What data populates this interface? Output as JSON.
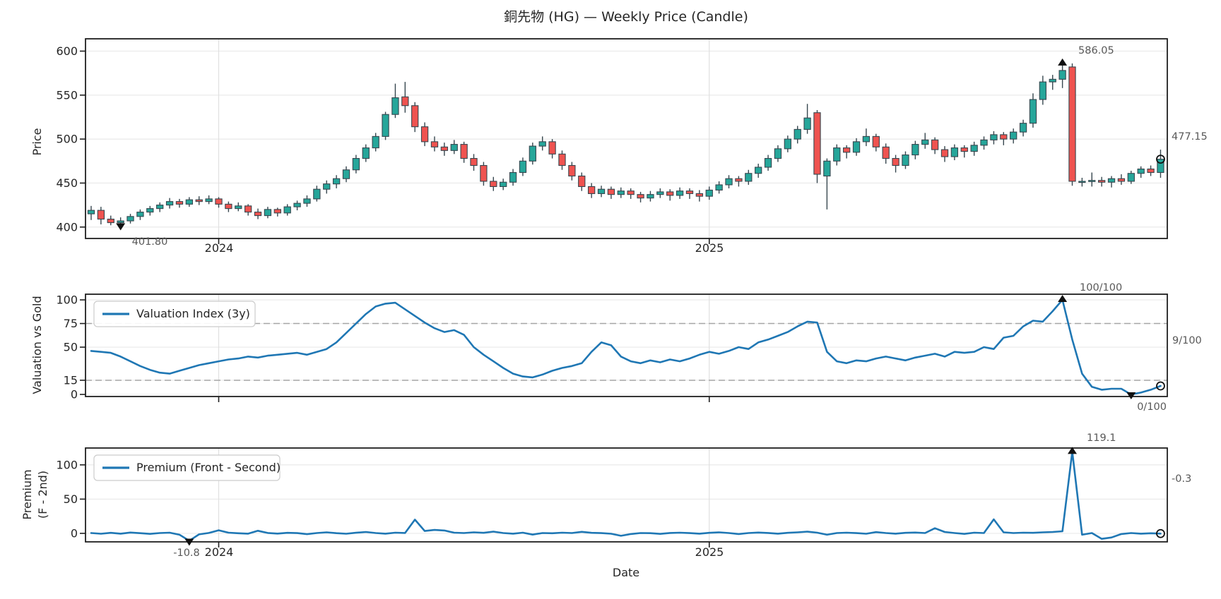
{
  "figure": {
    "title": "銅先物 (HG) — Weekly Price (Candle)",
    "xlabel": "Date",
    "xticks": [
      {
        "label": "2024",
        "index": 13
      },
      {
        "label": "2025",
        "index": 63
      }
    ],
    "colors": {
      "up": "#26a69a",
      "down": "#ef5350",
      "candle_edge": "#37474f",
      "line": "#1f77b4",
      "grid_h": "#e9e9e9",
      "grid_v": "#e0e0e0",
      "threshold": "#a6a6a6",
      "spine": "#1f1f1f",
      "marker": "#111111",
      "annotation": "#595959"
    }
  },
  "chart_data": [
    {
      "type": "candlestick",
      "ylabel": "Price",
      "yticks": [
        400,
        450,
        500,
        550,
        600
      ],
      "ylim": [
        387,
        614
      ],
      "annotations": {
        "high": {
          "index": 99,
          "value": 586.05,
          "label": "586.05"
        },
        "low": {
          "index": 3,
          "value": 401.8,
          "label": "401.80"
        },
        "last": {
          "index": 109,
          "value": 477.15,
          "label": "477.15"
        }
      },
      "ohlc": [
        [
          415,
          424,
          408,
          419
        ],
        [
          419,
          423,
          403,
          409
        ],
        [
          409,
          413,
          402,
          405
        ],
        [
          405,
          411,
          401.8,
          407
        ],
        [
          407,
          415,
          404,
          412
        ],
        [
          412,
          420,
          408,
          417
        ],
        [
          417,
          424,
          413,
          421
        ],
        [
          421,
          428,
          417,
          425
        ],
        [
          425,
          433,
          421,
          429
        ],
        [
          429,
          432,
          422,
          426
        ],
        [
          426,
          434,
          423,
          431
        ],
        [
          431,
          435,
          425,
          429
        ],
        [
          429,
          436,
          426,
          432
        ],
        [
          432,
          434,
          422,
          426
        ],
        [
          426,
          429,
          417,
          421
        ],
        [
          421,
          428,
          418,
          424
        ],
        [
          424,
          426,
          413,
          417
        ],
        [
          417,
          421,
          409,
          413
        ],
        [
          413,
          423,
          410,
          420
        ],
        [
          420,
          422,
          412,
          416
        ],
        [
          416,
          426,
          413,
          423
        ],
        [
          423,
          430,
          419,
          427
        ],
        [
          427,
          436,
          423,
          432
        ],
        [
          432,
          447,
          429,
          443
        ],
        [
          443,
          453,
          438,
          449
        ],
        [
          449,
          459,
          444,
          455
        ],
        [
          455,
          469,
          451,
          465
        ],
        [
          465,
          482,
          461,
          478
        ],
        [
          478,
          494,
          474,
          490
        ],
        [
          490,
          507,
          486,
          503
        ],
        [
          503,
          531,
          499,
          528
        ],
        [
          528,
          563,
          524,
          547
        ],
        [
          548,
          565,
          530,
          538
        ],
        [
          538,
          542,
          508,
          514
        ],
        [
          514,
          519,
          492,
          497
        ],
        [
          497,
          503,
          486,
          491
        ],
        [
          491,
          496,
          481,
          487
        ],
        [
          487,
          499,
          483,
          494
        ],
        [
          494,
          497,
          473,
          478
        ],
        [
          478,
          483,
          464,
          470
        ],
        [
          470,
          474,
          447,
          452
        ],
        [
          452,
          457,
          441,
          446
        ],
        [
          446,
          455,
          442,
          451
        ],
        [
          451,
          466,
          447,
          462
        ],
        [
          462,
          479,
          458,
          475
        ],
        [
          475,
          496,
          471,
          492
        ],
        [
          492,
          503,
          487,
          497
        ],
        [
          497,
          500,
          478,
          483
        ],
        [
          483,
          487,
          465,
          470
        ],
        [
          470,
          474,
          453,
          458
        ],
        [
          458,
          462,
          441,
          446
        ],
        [
          446,
          450,
          433,
          438
        ],
        [
          438,
          447,
          434,
          443
        ],
        [
          443,
          446,
          432,
          437
        ],
        [
          437,
          445,
          433,
          441
        ],
        [
          441,
          444,
          432,
          437
        ],
        [
          437,
          440,
          428,
          433
        ],
        [
          433,
          441,
          429,
          437
        ],
        [
          437,
          444,
          433,
          440
        ],
        [
          440,
          443,
          430,
          436
        ],
        [
          436,
          445,
          432,
          441
        ],
        [
          441,
          444,
          432,
          438
        ],
        [
          438,
          442,
          429,
          435
        ],
        [
          435,
          446,
          431,
          442
        ],
        [
          442,
          452,
          438,
          448
        ],
        [
          448,
          459,
          444,
          455
        ],
        [
          455,
          458,
          446,
          452
        ],
        [
          452,
          465,
          448,
          461
        ],
        [
          461,
          472,
          456,
          468
        ],
        [
          468,
          482,
          464,
          478
        ],
        [
          478,
          493,
          474,
          489
        ],
        [
          489,
          504,
          485,
          500
        ],
        [
          500,
          515,
          495,
          511
        ],
        [
          511,
          540,
          506,
          524
        ],
        [
          530,
          533,
          450,
          460
        ],
        [
          458,
          478,
          420,
          475
        ],
        [
          475,
          494,
          470,
          490
        ],
        [
          490,
          493,
          478,
          485
        ],
        [
          485,
          501,
          481,
          497
        ],
        [
          497,
          512,
          492,
          503
        ],
        [
          503,
          506,
          486,
          491
        ],
        [
          491,
          495,
          472,
          478
        ],
        [
          478,
          482,
          462,
          470
        ],
        [
          470,
          486,
          466,
          482
        ],
        [
          482,
          498,
          477,
          494
        ],
        [
          494,
          507,
          489,
          499
        ],
        [
          499,
          502,
          483,
          488
        ],
        [
          488,
          492,
          474,
          480
        ],
        [
          480,
          494,
          476,
          490
        ],
        [
          490,
          493,
          479,
          486
        ],
        [
          486,
          497,
          481,
          493
        ],
        [
          493,
          503,
          488,
          499
        ],
        [
          499,
          509,
          494,
          505
        ],
        [
          505,
          508,
          493,
          500
        ],
        [
          500,
          512,
          495,
          508
        ],
        [
          508,
          522,
          503,
          518
        ],
        [
          518,
          552,
          513,
          545
        ],
        [
          545,
          572,
          539,
          565
        ],
        [
          565,
          573,
          556,
          568
        ],
        [
          568,
          586.05,
          558,
          578
        ],
        [
          582,
          586,
          447,
          452
        ],
        [
          451,
          456,
          446,
          452
        ],
        [
          452,
          462,
          446,
          453
        ],
        [
          453,
          457,
          446,
          451
        ],
        [
          451,
          458,
          445,
          455
        ],
        [
          455,
          460,
          448,
          452
        ],
        [
          452,
          464,
          449,
          461
        ],
        [
          461,
          469,
          456,
          466
        ],
        [
          466,
          470,
          458,
          462
        ],
        [
          462,
          488,
          456,
          477.15
        ]
      ]
    },
    {
      "type": "line",
      "ylabel": "Valuation vs Gold",
      "legend": "Valuation Index (3y)",
      "yticks": [
        0,
        15,
        50,
        75,
        100
      ],
      "ylim": [
        -2.2,
        106
      ],
      "thresholds": [
        15,
        75
      ],
      "annotations": {
        "high": {
          "index": 99,
          "value": 100,
          "label": "100/100"
        },
        "low": {
          "index": 106,
          "value": 0,
          "label": "0/100"
        },
        "last": {
          "index": 109,
          "value": 9,
          "label": "9/100"
        }
      },
      "values": [
        46,
        45,
        44,
        40,
        35,
        30,
        26,
        23,
        22,
        25,
        28,
        31,
        33,
        35,
        37,
        38,
        40,
        39,
        41,
        42,
        43,
        44,
        42,
        45,
        48,
        55,
        65,
        75,
        85,
        93,
        96,
        97,
        90,
        83,
        76,
        70,
        66,
        68,
        63,
        50,
        42,
        35,
        28,
        22,
        19,
        18,
        21,
        25,
        28,
        30,
        33,
        45,
        55,
        52,
        40,
        35,
        33,
        36,
        34,
        37,
        35,
        38,
        42,
        45,
        43,
        46,
        50,
        48,
        55,
        58,
        62,
        66,
        72,
        77,
        76,
        45,
        35,
        33,
        36,
        35,
        38,
        40,
        38,
        36,
        39,
        41,
        43,
        40,
        45,
        44,
        45,
        50,
        48,
        60,
        62,
        72,
        78,
        77,
        88,
        100,
        58,
        22,
        8,
        5,
        6,
        6,
        0,
        2,
        5,
        9
      ]
    },
    {
      "type": "line",
      "ylabel_lines": [
        "Premium",
        "(F - 2nd)"
      ],
      "legend": "Premium (Front - Second)",
      "yticks": [
        0,
        50,
        100
      ],
      "ylim": [
        -12.4,
        124.6
      ],
      "annotations": {
        "high": {
          "index": 100,
          "value": 119.1,
          "label": "119.1"
        },
        "low": {
          "index": 10,
          "value": -10.8,
          "label": "-10.8"
        },
        "last": {
          "index": 109,
          "value": -0.3,
          "label": "-0.3"
        }
      },
      "values": [
        0.5,
        -0.6,
        0.8,
        -0.4,
        1.2,
        0.3,
        -0.8,
        0.5,
        1.0,
        -2.0,
        -10.8,
        -1.5,
        0.6,
        4.5,
        1.0,
        0.2,
        -0.5,
        3.8,
        0.6,
        -0.3,
        0.8,
        0.4,
        -1.2,
        0.5,
        1.5,
        0.3,
        -0.6,
        0.9,
        2.0,
        0.5,
        -0.4,
        1.0,
        0.6,
        20.0,
        3.5,
        5.0,
        4.2,
        1.0,
        0.5,
        1.5,
        0.8,
        2.5,
        0.5,
        -0.5,
        1.0,
        -1.8,
        0.5,
        0.2,
        1.0,
        0.5,
        2.2,
        0.8,
        0.4,
        -0.6,
        -3.5,
        -1.0,
        0.5,
        0.3,
        -0.8,
        0.6,
        1.0,
        0.4,
        -0.5,
        0.8,
        1.5,
        0.5,
        -1.0,
        0.5,
        1.2,
        0.6,
        -0.4,
        0.8,
        1.5,
        2.5,
        1.0,
        -2.0,
        0.5,
        1.0,
        0.4,
        -0.6,
        1.8,
        0.5,
        -0.5,
        0.8,
        1.2,
        0.5,
        7.5,
        2.0,
        0.5,
        -0.8,
        1.0,
        0.5,
        20.5,
        1.5,
        0.5,
        1.0,
        0.8,
        1.5,
        2.0,
        3.0,
        119.1,
        -2.0,
        0.5,
        -8.0,
        -6.0,
        -1.0,
        0.5,
        -0.5,
        0.2,
        -0.3
      ]
    }
  ]
}
